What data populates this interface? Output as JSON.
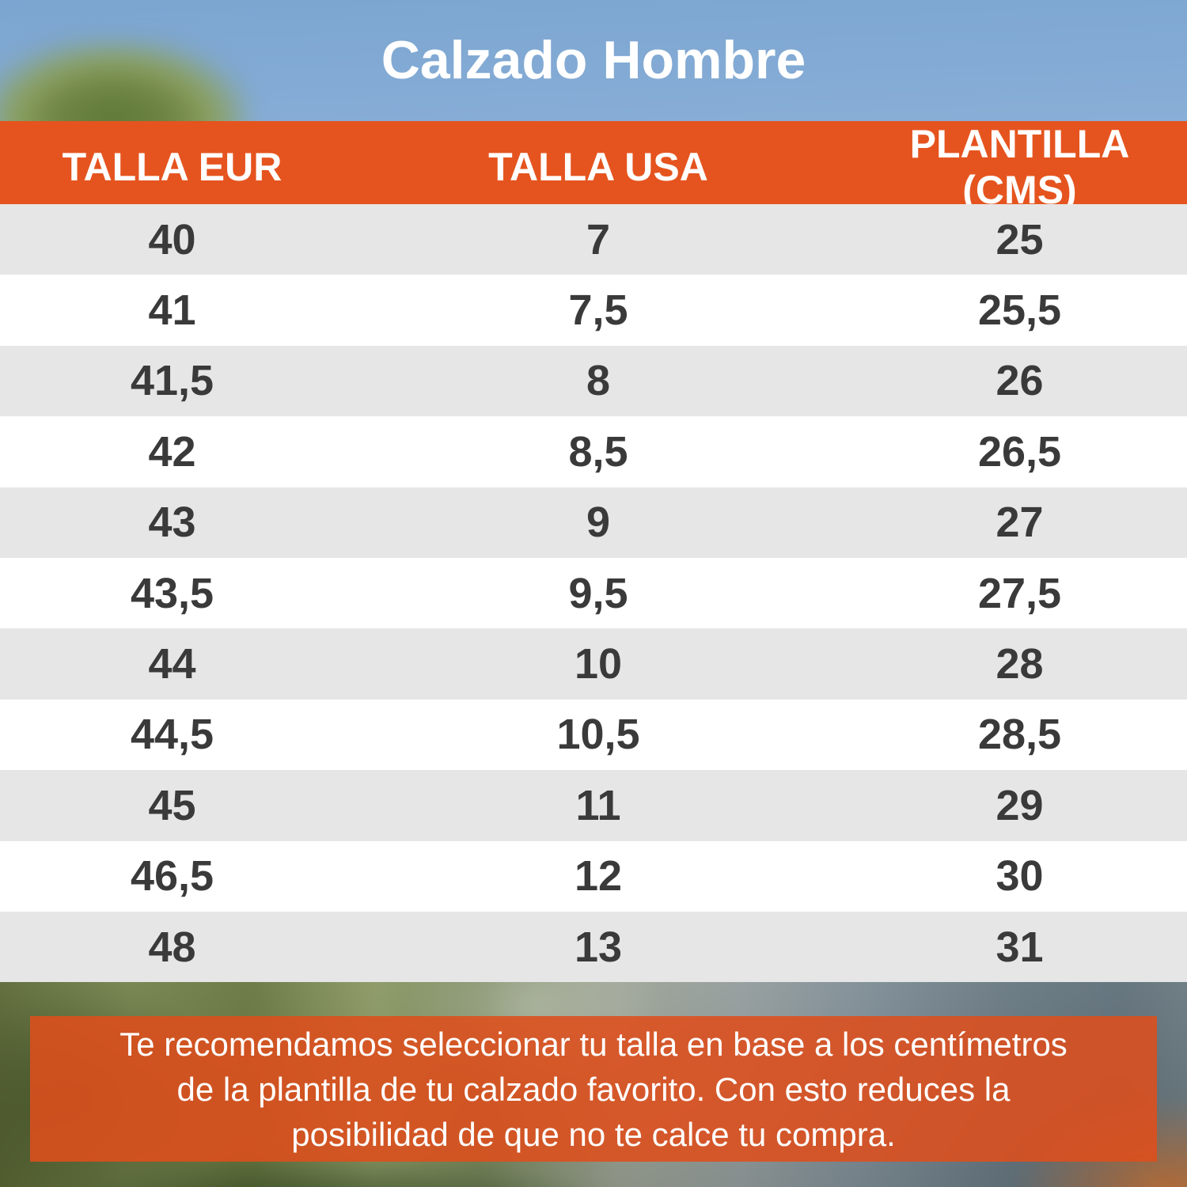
{
  "title": "Calzado Hombre",
  "chart_data": {
    "type": "table",
    "title": "Calzado Hombre",
    "columns": [
      "TALLA EUR",
      "TALLA USA",
      "PLANTILLA (CMS)"
    ],
    "rows": [
      [
        "40",
        "7",
        "25"
      ],
      [
        "41",
        "7,5",
        "25,5"
      ],
      [
        "41,5",
        "8",
        "26"
      ],
      [
        "42",
        "8,5",
        "26,5"
      ],
      [
        "43",
        "9",
        "27"
      ],
      [
        "43,5",
        "9,5",
        "27,5"
      ],
      [
        "44",
        "10",
        "28"
      ],
      [
        "44,5",
        "10,5",
        "28,5"
      ],
      [
        "45",
        "11",
        "29"
      ],
      [
        "46,5",
        "12",
        "30"
      ],
      [
        "48",
        "13",
        "31"
      ]
    ],
    "note": "Te recomendamos seleccionar tu talla en base a los centímetros de la plantilla de tu calzado favorito. Con esto reduces la posibilidad de que no te calce tu compra."
  },
  "note": {
    "lines": [
      "Te recomendamos seleccionar tu talla en base a los centímetros",
      "de la plantilla de tu calzado favorito. Con esto reduces la",
      "posibilidad de que no te calce tu compra."
    ]
  },
  "colors": {
    "header_orange": "#E5541F",
    "note_orange": "#CB5526",
    "row_gray": "#E6E6E6",
    "row_white": "#FFFFFF",
    "cell_text": "#3A3A3A",
    "sky_blue": "#82AAD4",
    "title_white": "#FFFFFF"
  }
}
